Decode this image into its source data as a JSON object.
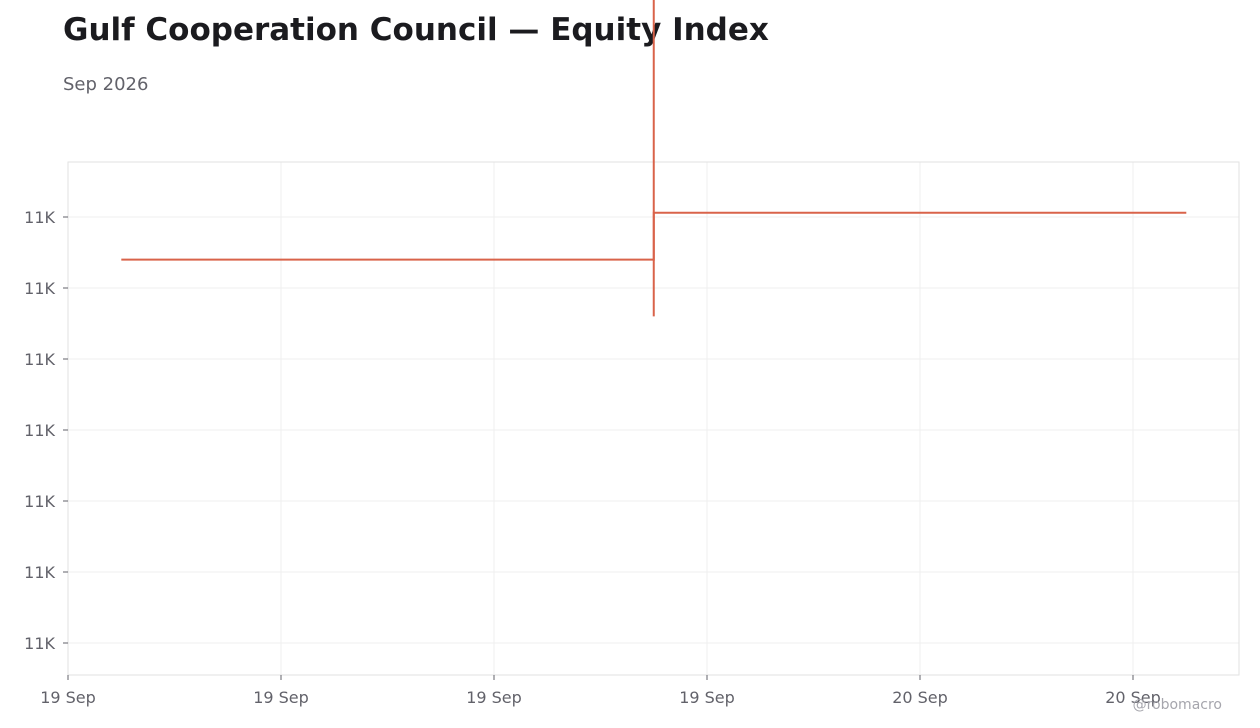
{
  "header": {
    "title": "Gulf Cooperation Council — Equity Index",
    "subtitle": "Sep 2026"
  },
  "watermark": "@robomacro",
  "colors": {
    "series": "#d9634a",
    "grid": "#efefef",
    "frame": "#e2e2e2",
    "text": "#62626a"
  },
  "chart_data": {
    "type": "line",
    "title": "Gulf Cooperation Council — Equity Index",
    "subtitle": "Sep 2026",
    "xlabel": "",
    "ylabel": "",
    "x_ticks": [
      "19 Sep",
      "19 Sep",
      "19 Sep",
      "19 Sep",
      "20 Sep",
      "20 Sep"
    ],
    "y_ticks": [
      "11K",
      "11K",
      "11K",
      "11K",
      "11K",
      "11K",
      "11K"
    ],
    "grid": true,
    "legend": "none",
    "series": [
      {
        "type": "step",
        "color": "#d9634a",
        "points": [
          {
            "x": 0.25,
            "y": 0.6
          },
          {
            "x": 2.75,
            "y": 0.6
          },
          {
            "x": 2.75,
            "y": -0.06
          },
          {
            "x": 5.25,
            "y": -0.06
          }
        ]
      },
      {
        "type": "range",
        "color": "#d9634a",
        "x": 2.75,
        "low": -5.2,
        "high": 1.4
      }
    ]
  }
}
